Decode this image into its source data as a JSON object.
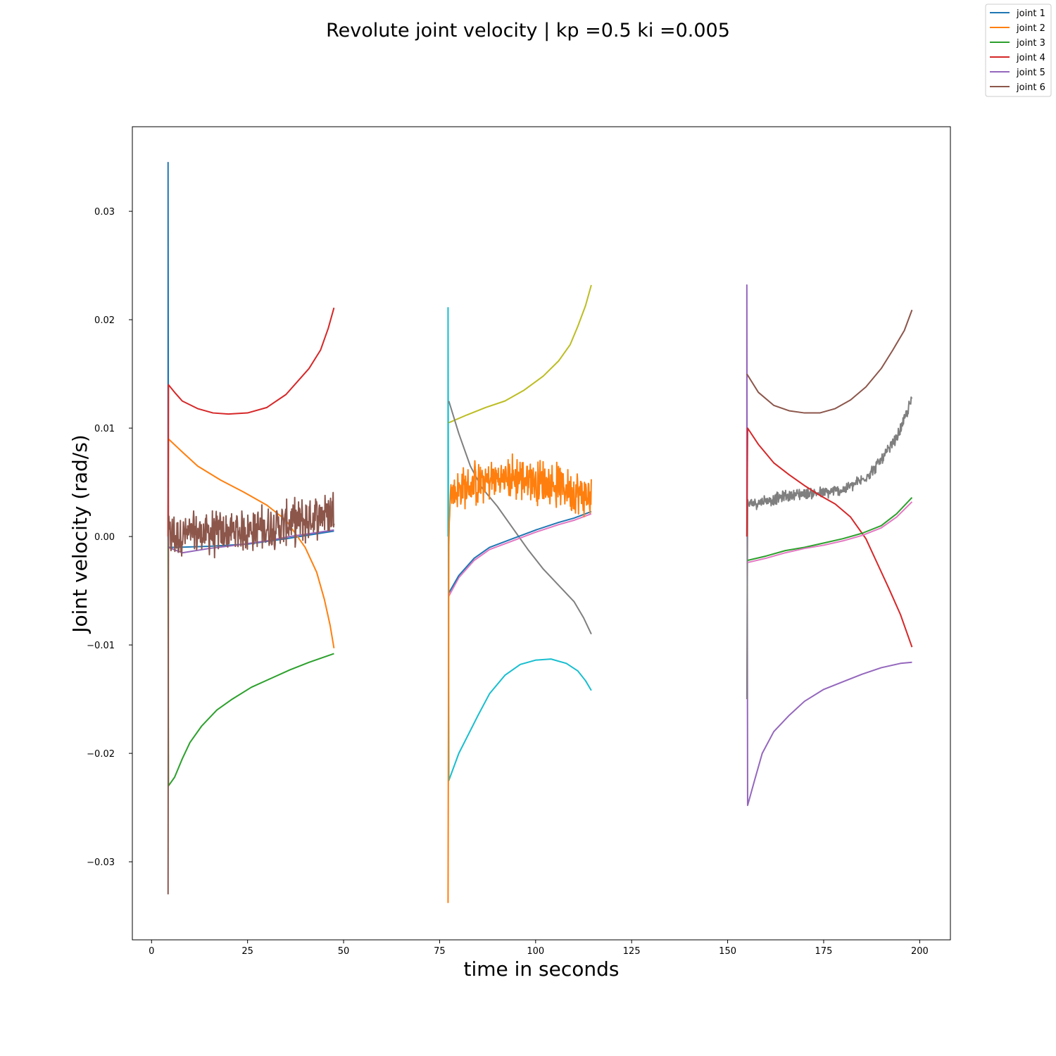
{
  "chart_data": {
    "type": "line",
    "title": "Revolute joint velocity | kp =0.5 ki =0.005",
    "xlabel": "time in seconds",
    "ylabel": "Joint velocity (rad/s)",
    "xlim": [
      -5,
      208
    ],
    "ylim": [
      -0.0372,
      0.0378
    ],
    "xticks": [
      0,
      25,
      50,
      75,
      100,
      125,
      150,
      175,
      200
    ],
    "xtick_labels": [
      "0",
      "25",
      "50",
      "75",
      "100",
      "125",
      "150",
      "175",
      "200"
    ],
    "yticks": [
      -0.03,
      -0.02,
      -0.01,
      0.0,
      0.01,
      0.02,
      0.03
    ],
    "ytick_labels": [
      "−0.03",
      "−0.02",
      "−0.01",
      "0.00",
      "0.01",
      "0.02",
      "0.03"
    ],
    "grid": false,
    "legend_position": "top-right",
    "legend": [
      {
        "label": "joint 1",
        "color": "#1f77b4"
      },
      {
        "label": "joint 2",
        "color": "#ff7f0e"
      },
      {
        "label": "joint 3",
        "color": "#2ca02c"
      },
      {
        "label": "joint 4",
        "color": "#d62728"
      },
      {
        "label": "joint 5",
        "color": "#9467bd"
      },
      {
        "label": "joint 6",
        "color": "#8c564b"
      }
    ],
    "series": [
      {
        "name": "joint 1",
        "color": "#1f77b4",
        "noise": 0.0,
        "points": [
          [
            4.3,
            0.0
          ],
          [
            4.3,
            0.0345
          ],
          [
            4.4,
            -0.001
          ],
          [
            6,
            -0.001
          ],
          [
            15,
            -0.0009
          ],
          [
            25,
            -0.0007
          ],
          [
            35,
            -0.0002
          ],
          [
            47.5,
            0.0005
          ]
        ]
      },
      {
        "name": "joint 2",
        "color": "#ff7f0e",
        "noise": 0.0,
        "points": [
          [
            4.3,
            0.0
          ],
          [
            4.4,
            0.009
          ],
          [
            8,
            0.0078
          ],
          [
            12,
            0.0065
          ],
          [
            18,
            0.0052
          ],
          [
            24,
            0.0041
          ],
          [
            30,
            0.0029
          ],
          [
            35,
            0.0015
          ],
          [
            40,
            -0.001
          ],
          [
            43,
            -0.0033
          ],
          [
            45,
            -0.0058
          ],
          [
            46.5,
            -0.0082
          ],
          [
            47.5,
            -0.0103
          ]
        ]
      },
      {
        "name": "joint 3",
        "color": "#2ca02c",
        "noise": 0.0,
        "points": [
          [
            4.3,
            0.0
          ],
          [
            4.4,
            -0.023
          ],
          [
            6,
            -0.0222
          ],
          [
            8,
            -0.0205
          ],
          [
            10,
            -0.019
          ],
          [
            13,
            -0.0175
          ],
          [
            17,
            -0.016
          ],
          [
            21,
            -0.015
          ],
          [
            26,
            -0.0139
          ],
          [
            31,
            -0.0131
          ],
          [
            36,
            -0.0123
          ],
          [
            41,
            -0.0116
          ],
          [
            47.5,
            -0.0108
          ]
        ]
      },
      {
        "name": "joint 4",
        "color": "#d62728",
        "noise": 0.0,
        "points": [
          [
            4.3,
            0.0
          ],
          [
            4.4,
            0.014
          ],
          [
            6,
            0.0133
          ],
          [
            8,
            0.0125
          ],
          [
            12,
            0.0118
          ],
          [
            16,
            0.0114
          ],
          [
            20,
            0.0113
          ],
          [
            25,
            0.0114
          ],
          [
            30,
            0.0119
          ],
          [
            35,
            0.0131
          ],
          [
            38,
            0.0143
          ],
          [
            41,
            0.0155
          ],
          [
            44,
            0.0172
          ],
          [
            46,
            0.0192
          ],
          [
            47.5,
            0.0211
          ]
        ]
      },
      {
        "name": "joint 5",
        "color": "#9467bd",
        "noise": 0.0,
        "points": [
          [
            4.3,
            0.0
          ],
          [
            4.4,
            -0.001
          ],
          [
            8,
            -0.0015
          ],
          [
            15,
            -0.0011
          ],
          [
            22,
            -0.0008
          ],
          [
            30,
            -0.0004
          ],
          [
            36,
            0.0
          ],
          [
            47.5,
            0.0006
          ]
        ]
      },
      {
        "name": "joint 6",
        "color": "#8c564b",
        "noise": 0.0045,
        "points": [
          [
            4.3,
            -0.033
          ],
          [
            4.4,
            0.0
          ],
          [
            10,
            0.0002
          ],
          [
            20,
            0.0004
          ],
          [
            30,
            0.0008
          ],
          [
            40,
            0.0015
          ],
          [
            47.5,
            0.0025
          ]
        ]
      },
      {
        "name": "",
        "color": "#17becf",
        "noise": 0.0,
        "points": [
          [
            77.2,
            0.0
          ],
          [
            77.2,
            0.0211
          ],
          [
            77.4,
            -0.0225
          ],
          [
            80,
            -0.02
          ],
          [
            82,
            -0.0186
          ],
          [
            85,
            -0.0165
          ],
          [
            88,
            -0.0145
          ],
          [
            92,
            -0.0128
          ],
          [
            96,
            -0.0118
          ],
          [
            100,
            -0.0114
          ],
          [
            104,
            -0.0113
          ],
          [
            108,
            -0.0117
          ],
          [
            111,
            -0.0124
          ],
          [
            113,
            -0.0133
          ],
          [
            114.5,
            -0.0142
          ]
        ]
      },
      {
        "name": "",
        "color": "#bcbd22",
        "noise": 0.0,
        "points": [
          [
            77.4,
            0.0105
          ],
          [
            82,
            0.0112
          ],
          [
            87,
            0.0119
          ],
          [
            92,
            0.0125
          ],
          [
            97,
            0.0135
          ],
          [
            102,
            0.0148
          ],
          [
            106,
            0.0162
          ],
          [
            109,
            0.0177
          ],
          [
            111,
            0.0194
          ],
          [
            113,
            0.0213
          ],
          [
            114.5,
            0.0232
          ]
        ]
      },
      {
        "name": "",
        "color": "#7f7f7f",
        "noise": 0.0,
        "points": [
          [
            77.4,
            0.0125
          ],
          [
            80,
            0.0095
          ],
          [
            83,
            0.0065
          ],
          [
            86,
            0.0045
          ],
          [
            90,
            0.0028
          ],
          [
            94,
            0.0008
          ],
          [
            98,
            -0.0012
          ],
          [
            102,
            -0.003
          ],
          [
            106,
            -0.0045
          ],
          [
            110,
            -0.006
          ],
          [
            112.5,
            -0.0075
          ],
          [
            114.5,
            -0.009
          ]
        ]
      },
      {
        "name": "",
        "color": "#e377c2",
        "noise": 0.0,
        "points": [
          [
            77.4,
            -0.0055
          ],
          [
            80,
            -0.0038
          ],
          [
            84,
            -0.0022
          ],
          [
            88,
            -0.0012
          ],
          [
            94,
            -0.0004
          ],
          [
            100,
            0.0004
          ],
          [
            106,
            0.0011
          ],
          [
            110,
            0.0015
          ],
          [
            114.5,
            0.0021
          ]
        ]
      },
      {
        "name": "",
        "color": "#1f77b4",
        "noise": 0.0,
        "points": [
          [
            77.4,
            -0.0052
          ],
          [
            80,
            -0.0036
          ],
          [
            84,
            -0.002
          ],
          [
            88,
            -0.001
          ],
          [
            94,
            -0.0002
          ],
          [
            100,
            0.0006
          ],
          [
            106,
            0.0013
          ],
          [
            110,
            0.0017
          ],
          [
            114.5,
            0.0023
          ]
        ]
      },
      {
        "name": "",
        "color": "#ff7f0e",
        "noise": 0.0045,
        "points": [
          [
            77.2,
            -0.0338
          ],
          [
            77.4,
            0.0
          ],
          [
            77.6,
            0.004
          ],
          [
            82,
            0.0045
          ],
          [
            88,
            0.0052
          ],
          [
            95,
            0.0055
          ],
          [
            102,
            0.005
          ],
          [
            108,
            0.0045
          ],
          [
            114.5,
            0.0035
          ]
        ]
      },
      {
        "name": "",
        "color": "#9467bd",
        "noise": 0.0,
        "points": [
          [
            155,
            0.0
          ],
          [
            155,
            0.0232
          ],
          [
            155.2,
            -0.0248
          ],
          [
            157,
            -0.0225
          ],
          [
            159,
            -0.02
          ],
          [
            162,
            -0.018
          ],
          [
            166,
            -0.0165
          ],
          [
            170,
            -0.0152
          ],
          [
            175,
            -0.0141
          ],
          [
            180,
            -0.0134
          ],
          [
            185,
            -0.0127
          ],
          [
            190,
            -0.0121
          ],
          [
            195,
            -0.0117
          ],
          [
            198,
            -0.0116
          ]
        ]
      },
      {
        "name": "",
        "color": "#8c564b",
        "noise": 0.0,
        "points": [
          [
            155,
            0.015
          ],
          [
            158,
            0.0133
          ],
          [
            162,
            0.0121
          ],
          [
            166,
            0.0116
          ],
          [
            170,
            0.0114
          ],
          [
            174,
            0.0114
          ],
          [
            178,
            0.0118
          ],
          [
            182,
            0.0126
          ],
          [
            186,
            0.0138
          ],
          [
            190,
            0.0155
          ],
          [
            193,
            0.0172
          ],
          [
            196,
            0.019
          ],
          [
            198,
            0.0209
          ]
        ]
      },
      {
        "name": "",
        "color": "#7f7f7f",
        "noise": 0.0012,
        "points": [
          [
            155,
            -0.015
          ],
          [
            155.2,
            0.003
          ],
          [
            160,
            0.0033
          ],
          [
            165,
            0.0037
          ],
          [
            170,
            0.004
          ],
          [
            175,
            0.004
          ],
          [
            180,
            0.0043
          ],
          [
            185,
            0.0052
          ],
          [
            188,
            0.0062
          ],
          [
            191,
            0.0075
          ],
          [
            194,
            0.0091
          ],
          [
            196,
            0.0107
          ],
          [
            198,
            0.0128
          ]
        ]
      },
      {
        "name": "",
        "color": "#d62728",
        "noise": 0.0,
        "points": [
          [
            155,
            0.0
          ],
          [
            155.2,
            0.01
          ],
          [
            158,
            0.0085
          ],
          [
            162,
            0.0068
          ],
          [
            166,
            0.0057
          ],
          [
            170,
            0.0047
          ],
          [
            174,
            0.0038
          ],
          [
            178,
            0.003
          ],
          [
            182,
            0.0018
          ],
          [
            186,
            -0.0002
          ],
          [
            189,
            -0.0025
          ],
          [
            192,
            -0.0048
          ],
          [
            195,
            -0.0072
          ],
          [
            198,
            -0.0102
          ]
        ]
      },
      {
        "name": "",
        "color": "#2ca02c",
        "noise": 0.0,
        "points": [
          [
            155.2,
            -0.0022
          ],
          [
            160,
            -0.0018
          ],
          [
            165,
            -0.0013
          ],
          [
            170,
            -0.001
          ],
          [
            175,
            -0.0006
          ],
          [
            180,
            -0.0002
          ],
          [
            185,
            0.0003
          ],
          [
            190,
            0.001
          ],
          [
            194,
            0.0021
          ],
          [
            198,
            0.0036
          ]
        ]
      },
      {
        "name": "",
        "color": "#e377c2",
        "noise": 0.0,
        "points": [
          [
            155.2,
            -0.0024
          ],
          [
            160,
            -0.002
          ],
          [
            165,
            -0.0015
          ],
          [
            170,
            -0.0011
          ],
          [
            175,
            -0.0008
          ],
          [
            180,
            -0.0004
          ],
          [
            185,
            0.0001
          ],
          [
            190,
            0.0008
          ],
          [
            194,
            0.0018
          ],
          [
            198,
            0.0032
          ]
        ]
      }
    ]
  }
}
